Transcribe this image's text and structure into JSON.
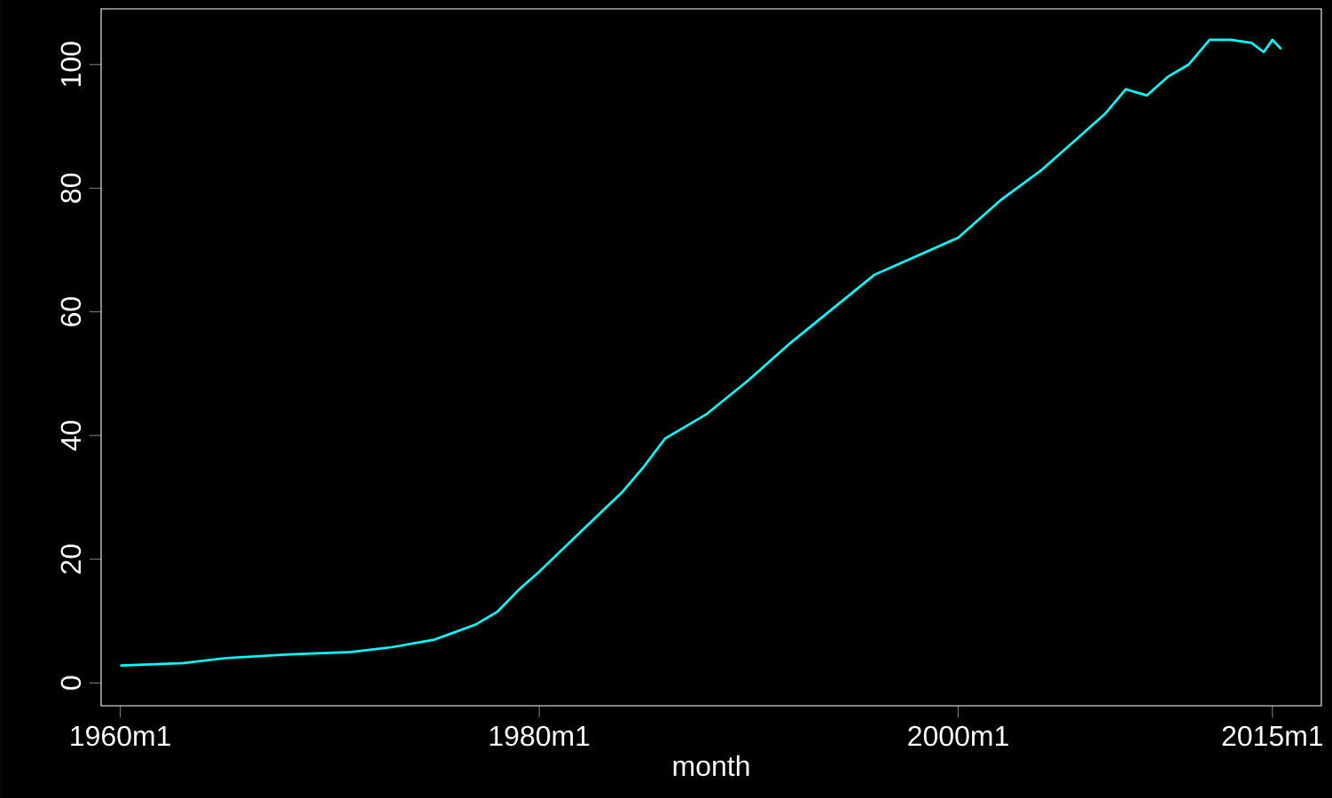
{
  "chart_data": {
    "type": "line",
    "xlabel": "month",
    "color": "#00ffff",
    "x": [
      "1960-01",
      "1963-01",
      "1965-01",
      "1968-01",
      "1971-01",
      "1973-01",
      "1975-01",
      "1977-01",
      "1978-01",
      "1979-01",
      "1980-01",
      "1982-01",
      "1984-01",
      "1985-01",
      "1986-01",
      "1988-01",
      "1990-01",
      "1992-01",
      "1994-01",
      "1996-01",
      "1998-01",
      "2000-01",
      "2002-01",
      "2004-01",
      "2006-01",
      "2007-01",
      "2008-01",
      "2009-01",
      "2010-01",
      "2011-01",
      "2012-01",
      "2013-01",
      "2014-01",
      "2014-08",
      "2015-01",
      "2015-06"
    ],
    "values": [
      2.8,
      3.2,
      4.0,
      4.6,
      5.0,
      5.8,
      7.0,
      9.5,
      11.5,
      15,
      18,
      24.5,
      31,
      35,
      39.5,
      43.5,
      49,
      55,
      60.5,
      66,
      69,
      72,
      78,
      83,
      89,
      92,
      96,
      95,
      98,
      100,
      104,
      104,
      103.5,
      102,
      104,
      102.5
    ],
    "xlim": [
      "1959-02",
      "2017-05"
    ],
    "ylim": [
      -3.7,
      109
    ],
    "xticks": [
      {
        "value": "1960-01",
        "label": "1960m1"
      },
      {
        "value": "1980-01",
        "label": "1980m1"
      },
      {
        "value": "2000-01",
        "label": "2000m1"
      },
      {
        "value": "2015-01",
        "label": "2015m1"
      }
    ],
    "yticks": [
      0,
      20,
      40,
      60,
      80,
      100
    ],
    "grid": false,
    "marker": "none",
    "line_style": "solid"
  }
}
